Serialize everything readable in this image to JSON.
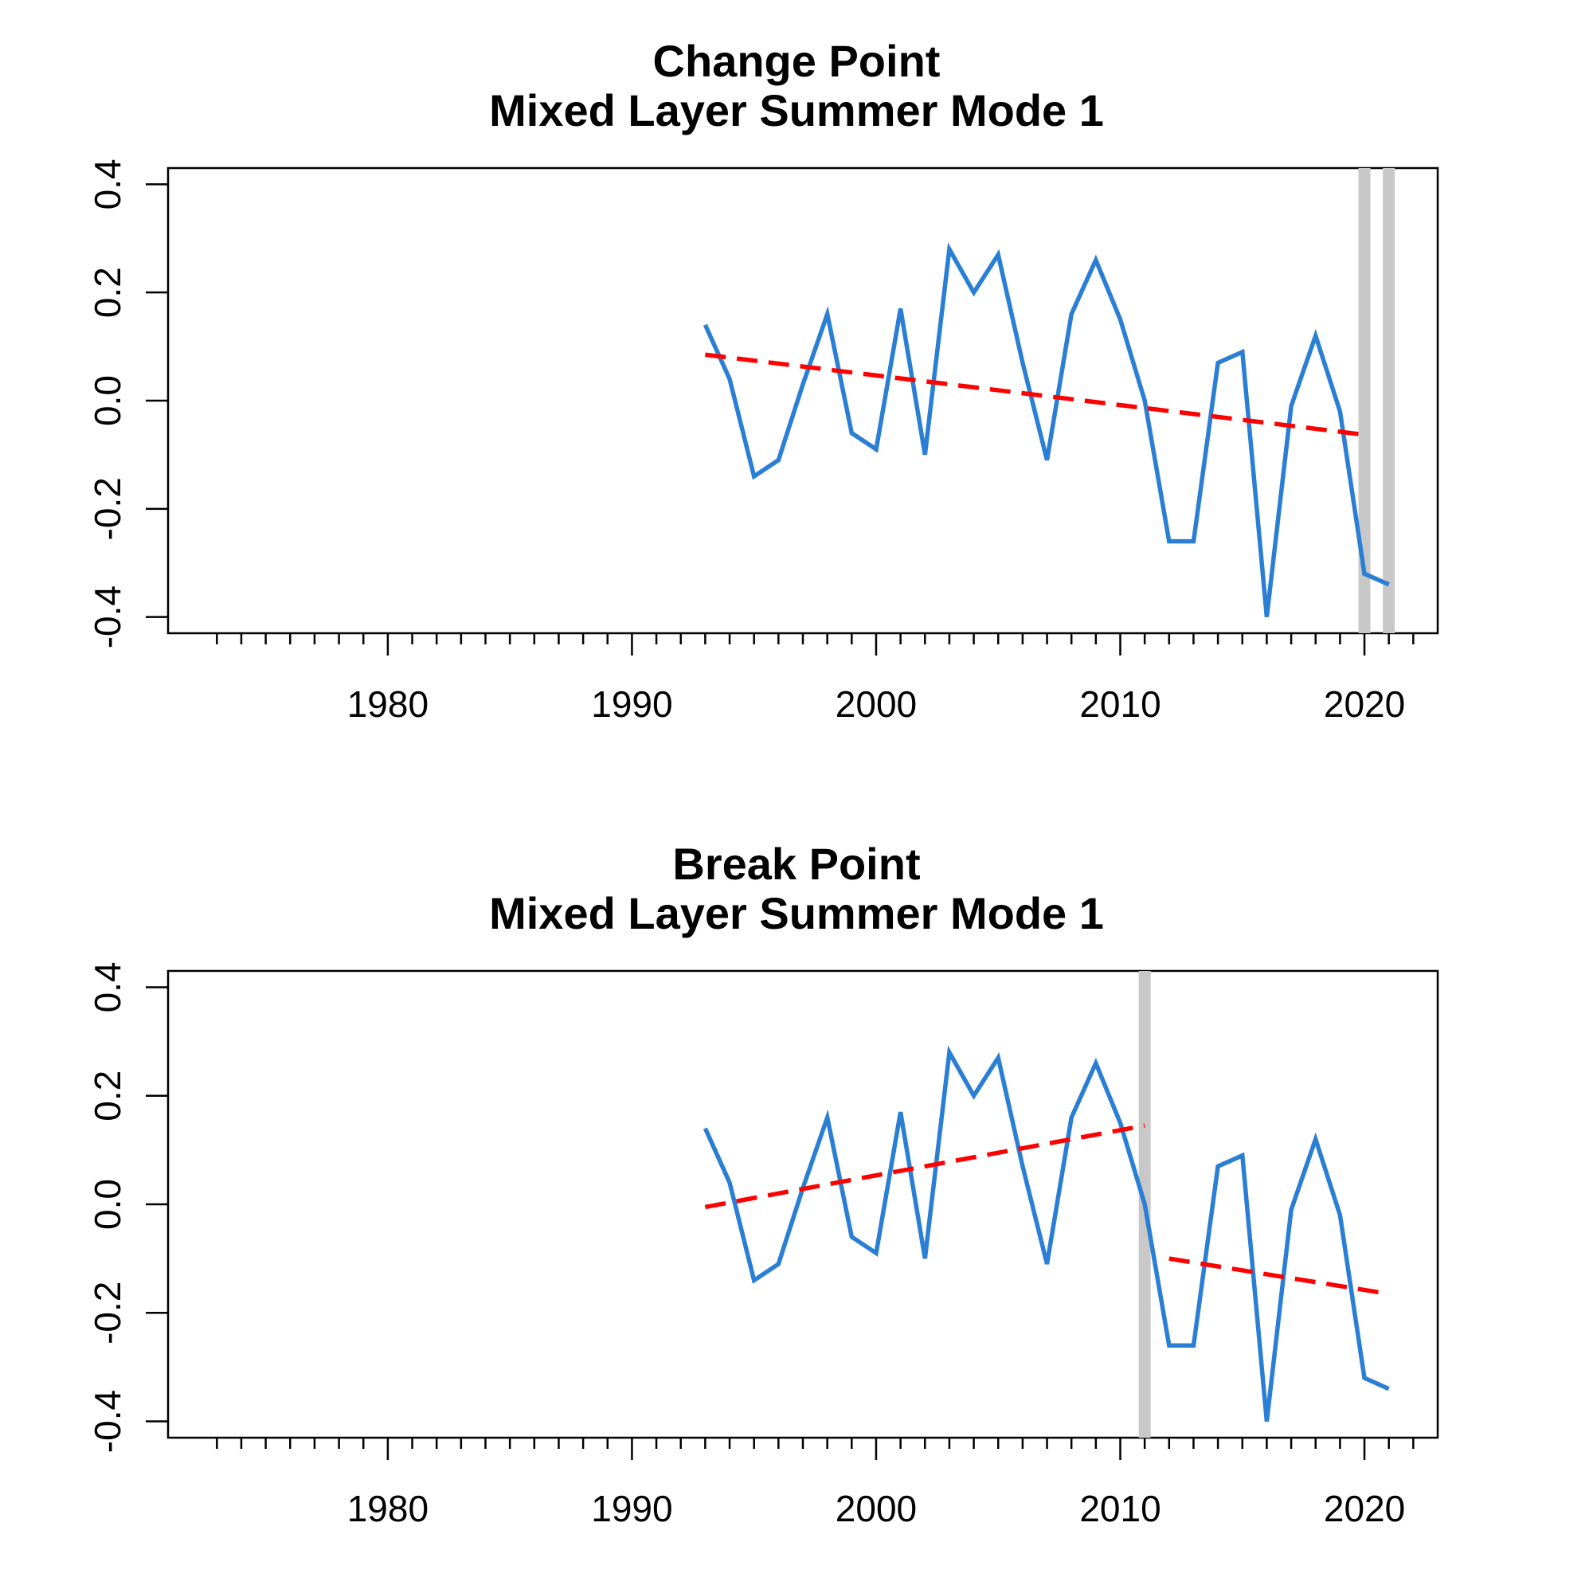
{
  "chart_data": [
    {
      "type": "line",
      "title": "Change Point",
      "subtitle": "Mixed Layer Summer Mode 1",
      "xlabel": "",
      "ylabel": "",
      "xlim": [
        1971,
        2023
      ],
      "ylim": [
        -0.43,
        0.43
      ],
      "x_ticks": [
        1980,
        1990,
        2000,
        2010,
        2020
      ],
      "y_ticks": [
        -0.4,
        -0.2,
        0.0,
        0.2,
        0.4
      ],
      "y_tick_labels": [
        "-0.4",
        "-0.2",
        "0.0",
        "0.2",
        "0.4"
      ],
      "grid": false,
      "series": [
        {
          "x": [
            1993,
            1994,
            1995,
            1996,
            1997,
            1998,
            1999,
            2000,
            2001,
            2002,
            2003,
            2004,
            2005,
            2006,
            2007,
            2008,
            2009,
            2010,
            2011,
            2012,
            2013,
            2014,
            2015,
            2016,
            2017,
            2018,
            2019,
            2020,
            2021
          ],
          "values": [
            0.14,
            0.04,
            -0.14,
            -0.11,
            0.03,
            0.16,
            -0.06,
            -0.09,
            0.17,
            -0.1,
            0.28,
            0.2,
            0.27,
            0.07,
            -0.11,
            0.16,
            0.26,
            0.15,
            0.0,
            -0.26,
            -0.26,
            0.07,
            0.09,
            -0.4,
            -0.01,
            0.12,
            -0.02,
            -0.32,
            -0.34
          ],
          "color": "#2a7fd4"
        }
      ],
      "trend_segments": [
        {
          "x": [
            1993,
            2020
          ],
          "y": [
            0.085,
            -0.063
          ],
          "color": "#ff0000"
        }
      ],
      "vertical_markers": [
        2020,
        2021
      ],
      "marker_color": "#c8c8c8"
    },
    {
      "type": "line",
      "title": "Break Point",
      "subtitle": "Mixed Layer Summer Mode 1",
      "xlabel": "",
      "ylabel": "",
      "xlim": [
        1971,
        2023
      ],
      "ylim": [
        -0.43,
        0.43
      ],
      "x_ticks": [
        1980,
        1990,
        2000,
        2010,
        2020
      ],
      "y_ticks": [
        -0.4,
        -0.2,
        0.0,
        0.2,
        0.4
      ],
      "y_tick_labels": [
        "-0.4",
        "-0.2",
        "0.0",
        "0.2",
        "0.4"
      ],
      "grid": false,
      "series": [
        {
          "x": [
            1993,
            1994,
            1995,
            1996,
            1997,
            1998,
            1999,
            2000,
            2001,
            2002,
            2003,
            2004,
            2005,
            2006,
            2007,
            2008,
            2009,
            2010,
            2011,
            2012,
            2013,
            2014,
            2015,
            2016,
            2017,
            2018,
            2019,
            2020,
            2021
          ],
          "values": [
            0.14,
            0.04,
            -0.14,
            -0.11,
            0.03,
            0.16,
            -0.06,
            -0.09,
            0.17,
            -0.1,
            0.28,
            0.2,
            0.27,
            0.07,
            -0.11,
            0.16,
            0.26,
            0.15,
            0.0,
            -0.26,
            -0.26,
            0.07,
            0.09,
            -0.4,
            -0.01,
            0.12,
            -0.02,
            -0.32,
            -0.34
          ],
          "color": "#2a7fd4"
        }
      ],
      "trend_segments": [
        {
          "x": [
            1993,
            2011
          ],
          "y": [
            -0.005,
            0.145
          ],
          "color": "#ff0000"
        },
        {
          "x": [
            2012,
            2021
          ],
          "y": [
            -0.1,
            -0.165
          ],
          "color": "#ff0000"
        }
      ],
      "vertical_markers": [
        2011
      ],
      "marker_color": "#c8c8c8"
    }
  ]
}
